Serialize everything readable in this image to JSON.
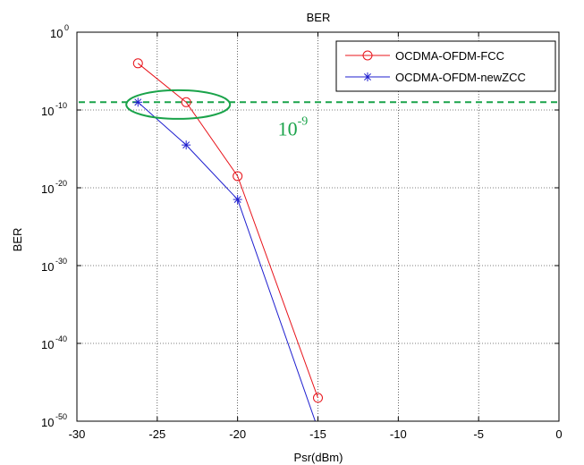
{
  "chart_data": {
    "type": "line",
    "title": "BER",
    "xlabel": "Psr(dBm)",
    "ylabel": "BER",
    "y_scale": "log",
    "xlim": [
      -30,
      0
    ],
    "ylim_exponent": [
      -50,
      0
    ],
    "x_ticks": [
      "-30",
      "-25",
      "-20",
      "-15",
      "-10",
      "-5",
      "0"
    ],
    "y_ticks": [
      {
        "base": "10",
        "exp": "0"
      },
      {
        "base": "10",
        "exp": "-10"
      },
      {
        "base": "10",
        "exp": "-20"
      },
      {
        "base": "10",
        "exp": "-30"
      },
      {
        "base": "10",
        "exp": "-40"
      },
      {
        "base": "10",
        "exp": "-50"
      }
    ],
    "grid": true,
    "legend_position": "top-right",
    "series": [
      {
        "name": "OCDMA-OFDM-FCC",
        "color": "#e8141b",
        "marker": "circle",
        "x": [
          -26.2,
          -23.2,
          -20,
          -15
        ],
        "log10_y": [
          -4,
          -9,
          -18.5,
          -47
        ]
      },
      {
        "name": "OCDMA-OFDM-newZCC",
        "color": "#1f1fcf",
        "marker": "star",
        "x": [
          -26.2,
          -23.2,
          -20,
          -15
        ],
        "log10_y": [
          -9,
          -14.5,
          -21.5,
          -51
        ]
      }
    ],
    "reference_line": {
      "log10_y": -9,
      "color": "#1aa34a",
      "style": "dashed"
    },
    "annotation": {
      "base": "10",
      "exp": "-9",
      "color": "#1aa34a"
    },
    "highlight_ellipse_color": "#1aa34a"
  }
}
